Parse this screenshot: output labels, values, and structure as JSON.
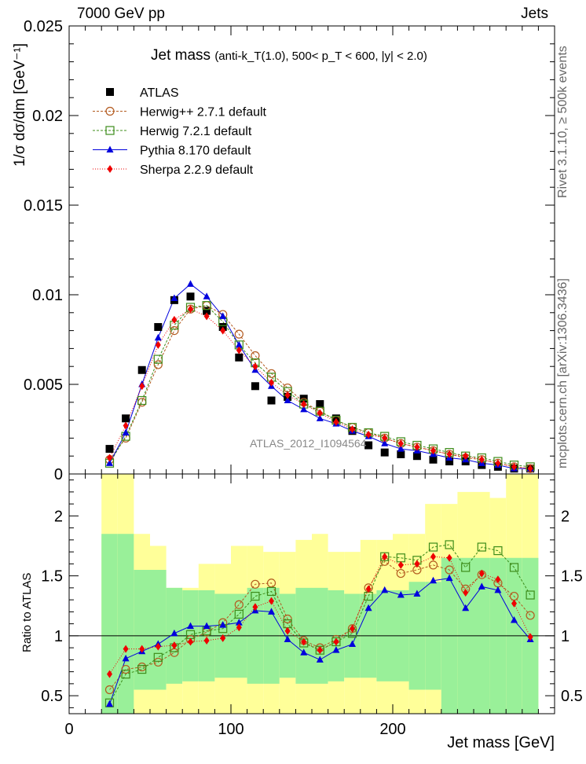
{
  "header": {
    "left_label": "7000 GeV pp",
    "right_label": "Jets"
  },
  "side_labels": {
    "rivet": "Rivet 3.1.10, ≥ 500k events",
    "mcplots": "mcplots.cern.ch [arXiv:1306.3436]"
  },
  "watermark": "ATLAS_2012_I1094564",
  "colors": {
    "atlas": "#000000",
    "herwigpp": "#b35a1f",
    "herwig7": "#3d8c1a",
    "pythia": "#0000dd",
    "sherpa": "#ee0000",
    "band_inner": "#99f099",
    "band_outer": "#ffff99"
  },
  "chart_data": [
    {
      "type": "line",
      "title": "Jet mass",
      "title_detail": "(anti-k_T(1.0), 500< p_T < 600, |y| < 2.0)",
      "ylabel": "1/σ dσ/dm [GeV⁻¹]",
      "xlim": [
        0,
        300
      ],
      "ylim": [
        0,
        0.025
      ],
      "y_ticks": [
        "0",
        "0.005",
        "0.01",
        "0.015",
        "0.02",
        "0.025"
      ],
      "x": [
        25,
        35,
        45,
        55,
        65,
        75,
        85,
        95,
        105,
        115,
        125,
        135,
        145,
        155,
        165,
        175,
        185,
        195,
        205,
        215,
        225,
        235,
        245,
        255,
        265,
        275,
        285
      ],
      "series": [
        {
          "key": "atlas",
          "name": "ATLAS",
          "marker": "square-filled",
          "values": [
            0.0014,
            0.0031,
            0.0058,
            0.0082,
            0.0097,
            0.0099,
            0.0091,
            0.0082,
            0.0065,
            0.0049,
            0.0041,
            0.0043,
            0.0042,
            0.0039,
            0.0031,
            0.0024,
            0.0016,
            0.0012,
            0.0011,
            0.001,
            0.0008,
            0.0007,
            0.0007,
            0.0005,
            0.0004,
            0.0003,
            0.0003
          ]
        },
        {
          "key": "herwigpp",
          "name": "Herwig++ 2.7.1 default",
          "marker": "circle-open",
          "values": [
            0.0008,
            0.002,
            0.004,
            0.0061,
            0.008,
            0.0092,
            0.0094,
            0.0089,
            0.0078,
            0.0066,
            0.0056,
            0.0048,
            0.004,
            0.0035,
            0.003,
            0.0026,
            0.0023,
            0.002,
            0.0017,
            0.0015,
            0.0013,
            0.0011,
            0.0009,
            0.0008,
            0.0006,
            0.0004,
            0.0003
          ]
        },
        {
          "key": "herwig7",
          "name": "Herwig 7.2.1 default",
          "marker": "square-open",
          "values": [
            0.0006,
            0.0021,
            0.0041,
            0.0064,
            0.0083,
            0.0093,
            0.0094,
            0.0085,
            0.0072,
            0.0062,
            0.0054,
            0.0046,
            0.0039,
            0.0035,
            0.003,
            0.0026,
            0.0023,
            0.0021,
            0.0018,
            0.0016,
            0.0014,
            0.0012,
            0.001,
            0.0009,
            0.0007,
            0.0005,
            0.0004
          ]
        },
        {
          "key": "pythia",
          "name": "Pythia 8.170 default",
          "marker": "triangle-filled",
          "values": [
            0.0006,
            0.0023,
            0.005,
            0.0076,
            0.0098,
            0.0106,
            0.0099,
            0.0088,
            0.0072,
            0.0058,
            0.0049,
            0.0041,
            0.0036,
            0.0031,
            0.0028,
            0.0024,
            0.0021,
            0.0017,
            0.0014,
            0.0013,
            0.0011,
            0.0009,
            0.0008,
            0.0006,
            0.0005,
            0.0003,
            0.0003
          ]
        },
        {
          "key": "sherpa",
          "name": "Sherpa 2.2.9 default",
          "marker": "diamond-filled",
          "values": [
            0.0009,
            0.0027,
            0.0049,
            0.0072,
            0.0086,
            0.0092,
            0.0088,
            0.008,
            0.0069,
            0.006,
            0.0051,
            0.0044,
            0.0039,
            0.0034,
            0.0029,
            0.0025,
            0.0022,
            0.002,
            0.0017,
            0.0015,
            0.0013,
            0.0011,
            0.001,
            0.0008,
            0.0006,
            0.0004,
            0.0003
          ]
        }
      ]
    },
    {
      "type": "line",
      "title": "Ratio to ATLAS",
      "xlabel": "Jet mass [GeV]",
      "ylabel": "Ratio to ATLAS",
      "xlim": [
        0,
        300
      ],
      "ylim": [
        0.35,
        2.35
      ],
      "y_ticks": [
        "0.5",
        "1",
        "1.5",
        "2"
      ],
      "x_ticks": [
        "0",
        "100",
        "200"
      ],
      "x": [
        25,
        35,
        45,
        55,
        65,
        75,
        85,
        95,
        105,
        115,
        125,
        135,
        145,
        155,
        165,
        175,
        185,
        195,
        205,
        215,
        225,
        235,
        245,
        255,
        265,
        275,
        285
      ],
      "bin_edges": [
        20,
        30,
        40,
        50,
        60,
        70,
        80,
        90,
        100,
        110,
        120,
        130,
        140,
        150,
        160,
        170,
        180,
        190,
        200,
        210,
        220,
        230,
        240,
        250,
        260,
        270,
        280,
        290
      ],
      "band_inner": {
        "low": [
          0.35,
          0.35,
          0.55,
          0.55,
          0.6,
          0.62,
          0.62,
          0.65,
          0.65,
          0.6,
          0.6,
          0.65,
          0.6,
          0.6,
          0.62,
          0.65,
          0.65,
          0.62,
          0.62,
          0.55,
          0.55,
          0.35,
          0.35,
          0.35,
          0.35,
          0.35,
          0.35
        ],
        "high": [
          1.85,
          1.85,
          1.55,
          1.55,
          1.4,
          1.38,
          1.38,
          1.35,
          1.35,
          1.4,
          1.4,
          1.35,
          1.4,
          1.4,
          1.38,
          1.35,
          1.35,
          1.38,
          1.38,
          1.45,
          1.45,
          1.65,
          1.65,
          1.65,
          1.65,
          1.65,
          1.65
        ]
      },
      "band_outer": {
        "low": [
          0.35,
          0.35,
          0.35,
          0.35,
          0.35,
          0.35,
          0.35,
          0.35,
          0.35,
          0.35,
          0.35,
          0.35,
          0.35,
          0.35,
          0.35,
          0.35,
          0.35,
          0.35,
          0.35,
          0.35,
          0.35,
          0.35,
          0.35,
          0.35,
          0.35,
          0.35,
          0.35
        ],
        "high": [
          2.35,
          2.35,
          1.85,
          1.75,
          1.4,
          1.4,
          1.6,
          1.6,
          1.75,
          1.75,
          1.7,
          1.7,
          1.8,
          1.85,
          1.7,
          1.7,
          1.8,
          1.8,
          1.85,
          1.85,
          2.1,
          2.1,
          2.2,
          2.2,
          2.15,
          2.35,
          2.35
        ]
      },
      "series": [
        {
          "key": "herwigpp",
          "values": [
            0.55,
            0.72,
            0.74,
            0.78,
            0.86,
            0.97,
            1.03,
            1.11,
            1.26,
            1.43,
            1.44,
            1.14,
            0.96,
            0.9,
            0.97,
            1.06,
            1.4,
            1.62,
            1.52,
            1.55,
            1.59,
            1.55,
            1.39,
            1.51,
            1.44,
            1.33,
            1.17
          ]
        },
        {
          "key": "herwig7",
          "values": [
            0.44,
            0.68,
            0.72,
            0.82,
            0.9,
            1.01,
            1.04,
            1.06,
            1.18,
            1.33,
            1.37,
            1.1,
            0.94,
            0.88,
            0.95,
            1.02,
            1.33,
            1.66,
            1.65,
            1.63,
            1.74,
            1.76,
            1.57,
            1.74,
            1.71,
            1.57,
            1.34
          ]
        },
        {
          "key": "pythia",
          "values": [
            0.43,
            0.81,
            0.87,
            0.93,
            1.02,
            1.08,
            1.08,
            1.09,
            1.11,
            1.21,
            1.2,
            0.97,
            0.86,
            0.8,
            0.88,
            0.93,
            1.23,
            1.38,
            1.34,
            1.35,
            1.46,
            1.48,
            1.23,
            1.41,
            1.38,
            1.13,
            0.97
          ]
        },
        {
          "key": "sherpa",
          "values": [
            0.68,
            0.89,
            0.89,
            0.91,
            0.92,
            0.95,
            0.96,
            0.98,
            1.07,
            1.24,
            1.29,
            1.04,
            0.95,
            0.88,
            0.95,
            1.06,
            1.39,
            1.66,
            1.59,
            1.6,
            1.66,
            1.65,
            1.36,
            1.52,
            1.47,
            1.27,
            0.99
          ]
        }
      ]
    }
  ]
}
